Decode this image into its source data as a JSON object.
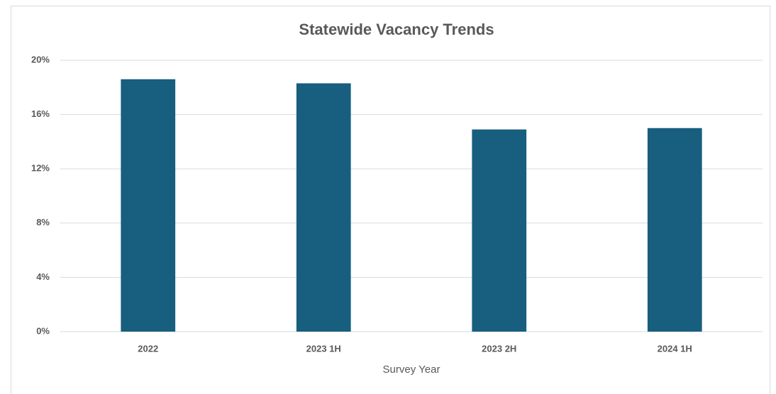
{
  "chart_data": {
    "type": "bar",
    "title": "Statewide Vacancy Trends",
    "x_label": "Survey Year",
    "categories": [
      "2022",
      "2023 1H",
      "2023 2H",
      "2024 1H"
    ],
    "values": [
      18.6,
      18.3,
      14.9,
      15.0
    ],
    "color": "#175e7f",
    "ylim": [
      0,
      20
    ],
    "yticks": [
      {
        "value": 0,
        "label": "0%"
      },
      {
        "value": 4,
        "label": "4%"
      },
      {
        "value": 8,
        "label": "8%"
      },
      {
        "value": 12,
        "label": "12%"
      },
      {
        "value": 16,
        "label": "16%"
      },
      {
        "value": 20,
        "label": "20%"
      }
    ],
    "grid": true
  }
}
